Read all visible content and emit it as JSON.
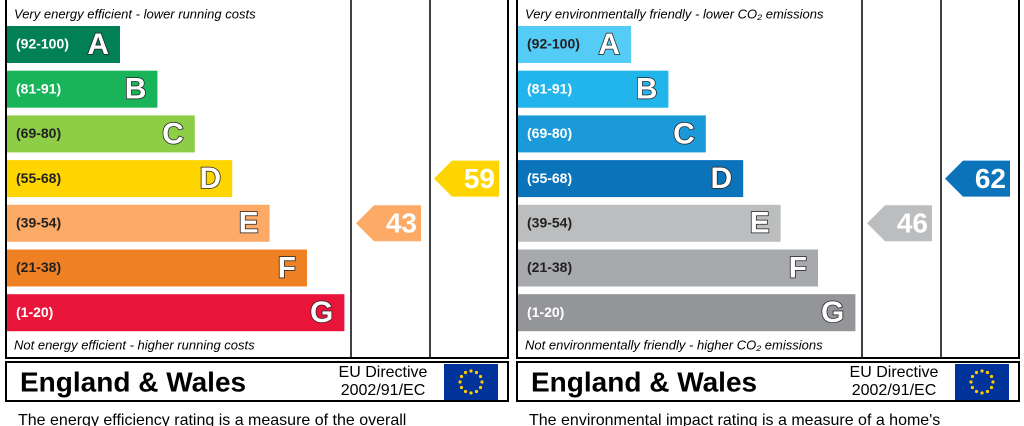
{
  "panels": [
    {
      "top_label": "Very energy efficient - lower running costs",
      "bottom_label": "Not energy efficient - higher running costs",
      "bands": [
        {
          "range": "(92-100)",
          "letter": "A",
          "color": "#008054"
        },
        {
          "range": "(81-91)",
          "letter": "B",
          "color": "#19b459"
        },
        {
          "range": "(69-80)",
          "letter": "C",
          "color": "#8dce46"
        },
        {
          "range": "(55-68)",
          "letter": "D",
          "color": "#ffd500"
        },
        {
          "range": "(39-54)",
          "letter": "E",
          "color": "#fcaa65"
        },
        {
          "range": "(21-38)",
          "letter": "F",
          "color": "#ef8023"
        },
        {
          "range": "(1-20)",
          "letter": "G",
          "color": "#e9153b"
        }
      ],
      "current": 43,
      "potential": 59,
      "region": "England & Wales",
      "directive": [
        "EU Directive",
        "2002/91/EC"
      ],
      "description": "The energy efficiency rating is a measure of the overall"
    },
    {
      "top_label": "Very environmentally friendly - lower CO₂ emissions",
      "bottom_label": "Not environmentally friendly - higher CO₂ emissions",
      "bands": [
        {
          "range": "(92-100)",
          "letter": "A",
          "color": "#55ccf5"
        },
        {
          "range": "(81-91)",
          "letter": "B",
          "color": "#22b5ec"
        },
        {
          "range": "(69-80)",
          "letter": "C",
          "color": "#1a9ad8"
        },
        {
          "range": "(55-68)",
          "letter": "D",
          "color": "#0a73b9"
        },
        {
          "range": "(39-54)",
          "letter": "E",
          "color": "#bbbdbf"
        },
        {
          "range": "(21-38)",
          "letter": "F",
          "color": "#a7a9ac"
        },
        {
          "range": "(1-20)",
          "letter": "G",
          "color": "#939598"
        }
      ],
      "current": 46,
      "potential": 62,
      "region": "England & Wales",
      "directive": [
        "EU Directive",
        "2002/91/EC"
      ],
      "description": "The environmental impact rating is a measure of a home's"
    }
  ]
}
